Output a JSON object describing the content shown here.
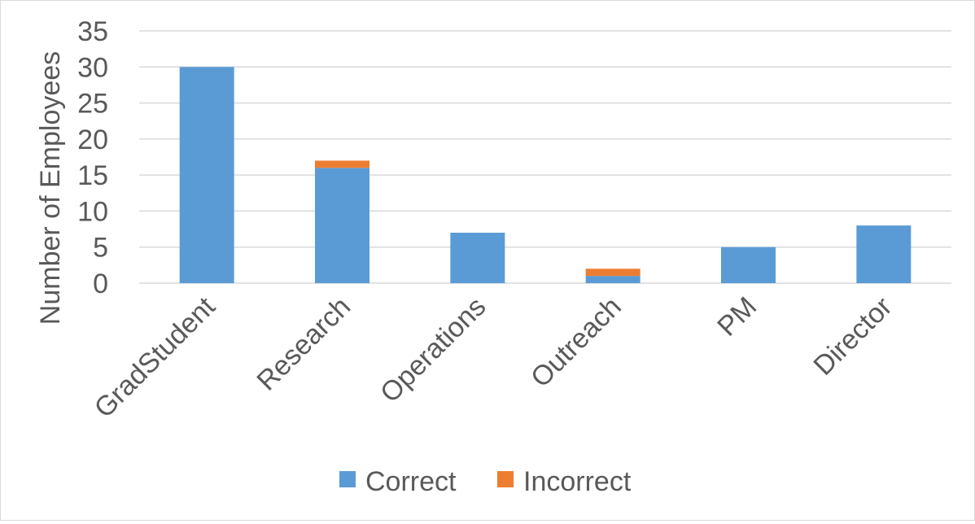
{
  "chart_data": {
    "type": "bar",
    "stacked": true,
    "title": "",
    "xlabel": "",
    "ylabel": "Number of Employees",
    "ylim": [
      0,
      35
    ],
    "yticks": [
      0,
      5,
      10,
      15,
      20,
      25,
      30,
      35
    ],
    "grid": true,
    "legend_position": "bottom",
    "categories": [
      "GradStudent",
      "Research",
      "Operations",
      "Outreach",
      "PM",
      "Director"
    ],
    "series": [
      {
        "name": "Correct",
        "color": "#5b9bd5",
        "values": [
          30,
          16,
          7,
          1,
          5,
          8
        ]
      },
      {
        "name": "Incorrect",
        "color": "#ed7d31",
        "values": [
          0,
          1,
          0,
          1,
          0,
          0
        ]
      }
    ]
  }
}
